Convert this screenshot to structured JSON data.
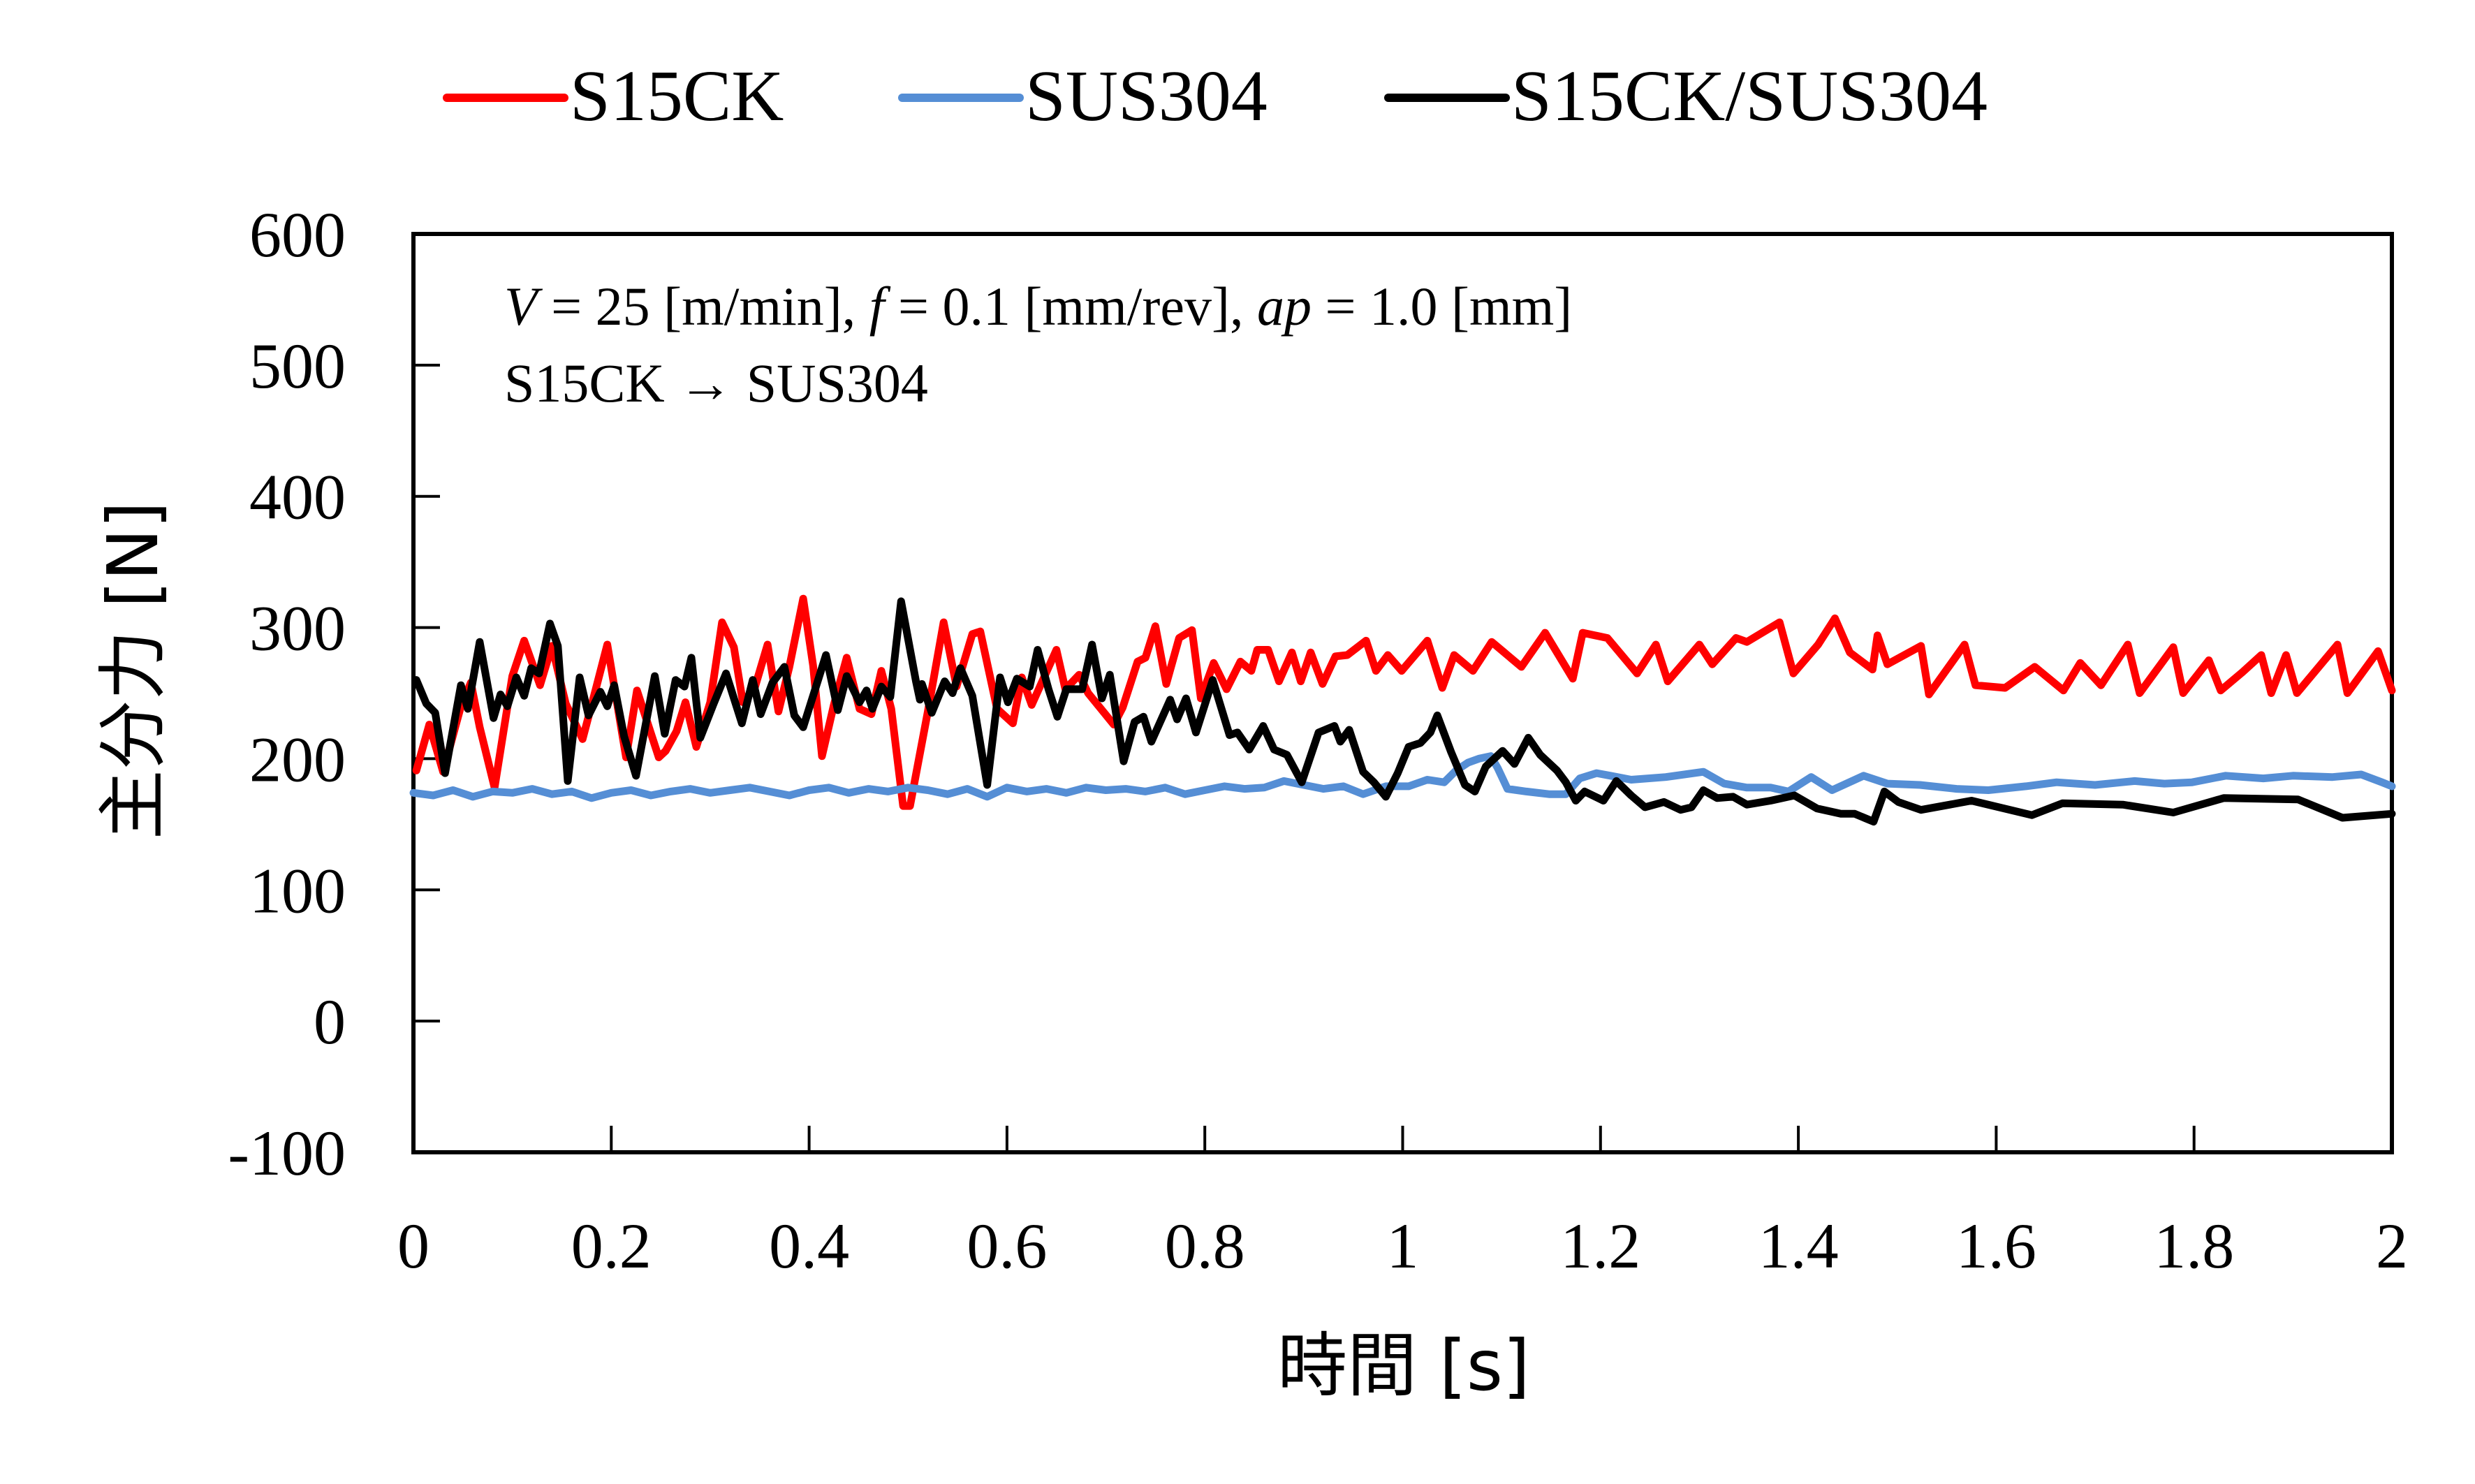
{
  "chart_data": {
    "type": "line",
    "title": "",
    "xlabel": "時間 [s]",
    "ylabel": "主分力 [N]",
    "xlim": [
      0,
      2
    ],
    "ylim": [
      -100,
      600
    ],
    "xticks": [
      0,
      0.2,
      0.4,
      0.6,
      0.8,
      1,
      1.2,
      1.4,
      1.6,
      1.8,
      2
    ],
    "xtick_labels": [
      "0",
      "0.2",
      "0.4",
      "0.6",
      "0.8",
      "1",
      "1.2",
      "1.4",
      "1.6",
      "1.8",
      "2"
    ],
    "yticks": [
      -100,
      0,
      100,
      200,
      300,
      400,
      500,
      600
    ],
    "ytick_labels": [
      "-100",
      "0",
      "100",
      "200",
      "300",
      "400",
      "500",
      "600"
    ],
    "grid": false,
    "legend_position": "top-center",
    "annotations": [
      {
        "parts": [
          {
            "text": "V",
            "italic": true
          },
          {
            "text": " = 25 [m/min], ",
            "italic": false
          },
          {
            "text": "f",
            "italic": true
          },
          {
            "text": " = 0.1 [mm/rev], ",
            "italic": false
          },
          {
            "text": "ap",
            "italic": true
          },
          {
            "text": " = 1.0 [mm]",
            "italic": false
          }
        ]
      },
      {
        "parts": [
          {
            "text": "S15CK → SUS304",
            "italic": false
          }
        ]
      }
    ],
    "series": [
      {
        "name": "S15CK",
        "color": "#FF0000",
        "t": [
          0.003,
          0.016,
          0.03,
          0.048,
          0.058,
          0.067,
          0.082,
          0.1,
          0.112,
          0.128,
          0.14,
          0.154,
          0.171,
          0.184,
          0.196,
          0.215,
          0.226,
          0.248,
          0.255,
          0.266,
          0.275,
          0.286,
          0.3,
          0.312,
          0.324,
          0.333,
          0.345,
          0.358,
          0.369,
          0.38,
          0.394,
          0.404,
          0.413,
          0.425,
          0.438,
          0.451,
          0.463,
          0.473,
          0.483,
          0.495,
          0.502,
          0.52,
          0.536,
          0.549,
          0.565,
          0.573,
          0.59,
          0.606,
          0.615,
          0.625,
          0.65,
          0.659,
          0.673,
          0.682,
          0.708,
          0.717,
          0.732,
          0.74,
          0.75,
          0.761,
          0.774,
          0.787,
          0.796,
          0.809,
          0.822,
          0.836,
          0.847,
          0.853,
          0.864,
          0.875,
          0.888,
          0.897,
          0.907,
          0.919,
          0.932,
          0.944,
          0.963,
          0.973,
          0.985,
          0.999,
          1.025,
          1.04,
          1.052,
          1.071,
          1.09,
          1.12,
          1.144,
          1.172,
          1.182,
          1.207,
          1.237,
          1.256,
          1.268,
          1.3,
          1.313,
          1.337,
          1.348,
          1.381,
          1.395,
          1.42,
          1.437,
          1.452,
          1.475,
          1.48,
          1.49,
          1.524,
          1.532,
          1.568,
          1.579,
          1.609,
          1.639,
          1.668,
          1.685,
          1.706,
          1.733,
          1.745,
          1.779,
          1.789,
          1.815,
          1.827,
          1.849,
          1.868,
          1.878,
          1.893,
          1.904,
          1.945,
          1.955,
          1.986,
          2.0
        ],
        "values": [
          191,
          226,
          190,
          240,
          258,
          224,
          178,
          263,
          290,
          256,
          286,
          242,
          215,
          252,
          287,
          201,
          252,
          201,
          206,
          221,
          243,
          209,
          243,
          304,
          285,
          243,
          254,
          287,
          236,
          270,
          322,
          271,
          202,
          241,
          277,
          238,
          234,
          267,
          238,
          164,
          164,
          236,
          304,
          255,
          295,
          297,
          238,
          227,
          262,
          241,
          283,
          253,
          264,
          250,
          226,
          239,
          274,
          277,
          301,
          257,
          292,
          298,
          246,
          273,
          253,
          274,
          267,
          283,
          283,
          259,
          281,
          259,
          281,
          257,
          278,
          279,
          290,
          267,
          279,
          267,
          290,
          254,
          279,
          267,
          289,
          270,
          296,
          261,
          296,
          292,
          265,
          287,
          259,
          287,
          272,
          292,
          289,
          304,
          265,
          287,
          307,
          281,
          268,
          294,
          272,
          286,
          249,
          287,
          256,
          254,
          270,
          252,
          273,
          256,
          287,
          250,
          285,
          250,
          275,
          252,
          266,
          279,
          250,
          279,
          250,
          287,
          250,
          282,
          252
        ]
      },
      {
        "name": "SUS304",
        "color": "#558ED5",
        "t": [
          0.0,
          0.02,
          0.04,
          0.06,
          0.08,
          0.1,
          0.12,
          0.14,
          0.16,
          0.18,
          0.2,
          0.22,
          0.24,
          0.26,
          0.28,
          0.3,
          0.32,
          0.34,
          0.36,
          0.38,
          0.4,
          0.42,
          0.44,
          0.46,
          0.48,
          0.5,
          0.52,
          0.54,
          0.56,
          0.58,
          0.6,
          0.62,
          0.64,
          0.66,
          0.68,
          0.7,
          0.72,
          0.74,
          0.76,
          0.78,
          0.8,
          0.82,
          0.84,
          0.86,
          0.88,
          0.9,
          0.92,
          0.94,
          0.96,
          0.983,
          1.006,
          1.025,
          1.042,
          1.054,
          1.066,
          1.077,
          1.089,
          1.096,
          1.106,
          1.125,
          1.148,
          1.165,
          1.179,
          1.196,
          1.21,
          1.231,
          1.266,
          1.304,
          1.325,
          1.348,
          1.372,
          1.39,
          1.413,
          1.434,
          1.466,
          1.49,
          1.523,
          1.56,
          1.592,
          1.63,
          1.661,
          1.7,
          1.74,
          1.77,
          1.798,
          1.832,
          1.87,
          1.9,
          1.94,
          1.969,
          1.99,
          2.0
        ],
        "values": [
          174,
          172,
          176,
          171,
          175,
          174,
          177,
          173,
          175,
          170,
          174,
          176,
          172,
          175,
          177,
          174,
          176,
          178,
          175,
          172,
          176,
          178,
          174,
          177,
          175,
          178,
          176,
          173,
          177,
          171,
          178,
          175,
          177,
          174,
          178,
          176,
          177,
          175,
          178,
          173,
          176,
          179,
          177,
          178,
          183,
          180,
          177,
          179,
          173,
          179,
          179,
          184,
          182,
          191,
          197,
          200,
          202,
          193,
          177,
          175,
          173,
          173,
          185,
          189,
          187,
          184,
          186,
          190,
          181,
          178,
          178,
          175,
          186,
          176,
          187,
          181,
          180,
          177,
          176,
          179,
          182,
          180,
          183,
          181,
          182,
          187,
          185,
          187,
          186,
          188,
          182,
          179
        ]
      },
      {
        "name": "S15CK/SUS304",
        "color": "#000000",
        "t": [
          0.003,
          0.013,
          0.022,
          0.032,
          0.048,
          0.055,
          0.067,
          0.081,
          0.088,
          0.095,
          0.104,
          0.112,
          0.119,
          0.127,
          0.138,
          0.146,
          0.156,
          0.168,
          0.177,
          0.189,
          0.196,
          0.203,
          0.213,
          0.225,
          0.244,
          0.254,
          0.265,
          0.274,
          0.281,
          0.29,
          0.303,
          0.316,
          0.332,
          0.343,
          0.351,
          0.363,
          0.375,
          0.385,
          0.394,
          0.417,
          0.429,
          0.438,
          0.451,
          0.458,
          0.464,
          0.473,
          0.482,
          0.493,
          0.508,
          0.512,
          0.514,
          0.524,
          0.537,
          0.545,
          0.553,
          0.565,
          0.58,
          0.593,
          0.601,
          0.61,
          0.623,
          0.631,
          0.642,
          0.651,
          0.66,
          0.676,
          0.686,
          0.696,
          0.704,
          0.718,
          0.729,
          0.738,
          0.746,
          0.765,
          0.772,
          0.781,
          0.791,
          0.808,
          0.825,
          0.833,
          0.845,
          0.859,
          0.87,
          0.883,
          0.898,
          0.915,
          0.931,
          0.937,
          0.946,
          0.96,
          0.971,
          0.983,
          0.995,
          1.006,
          1.018,
          1.028,
          1.035,
          1.049,
          1.063,
          1.073,
          1.084,
          1.101,
          1.113,
          1.127,
          1.139,
          1.156,
          1.165,
          1.175,
          1.184,
          1.203,
          1.216,
          1.231,
          1.245,
          1.264,
          1.281,
          1.292,
          1.304,
          1.318,
          1.334,
          1.348,
          1.372,
          1.396,
          1.419,
          1.443,
          1.457,
          1.476,
          1.487,
          1.501,
          1.524,
          1.575,
          1.636,
          1.667,
          1.728,
          1.779,
          1.83,
          1.905,
          1.95,
          2.0
        ],
        "values": [
          260,
          242,
          235,
          189,
          256,
          238,
          289,
          231,
          249,
          240,
          262,
          248,
          269,
          265,
          303,
          286,
          183,
          262,
          233,
          251,
          240,
          256,
          217,
          187,
          263,
          219,
          260,
          255,
          277,
          216,
          241,
          265,
          227,
          260,
          234,
          258,
          270,
          233,
          224,
          279,
          237,
          263,
          243,
          252,
          238,
          255,
          247,
          320,
          259,
          245,
          257,
          235,
          259,
          250,
          269,
          248,
          180,
          262,
          243,
          261,
          255,
          283,
          253,
          232,
          253,
          253,
          287,
          246,
          264,
          198,
          228,
          232,
          213,
          245,
          230,
          246,
          220,
          260,
          218,
          220,
          207,
          225,
          207,
          203,
          182,
          220,
          225,
          213,
          222,
          190,
          182,
          171,
          189,
          209,
          212,
          220,
          233,
          205,
          180,
          175,
          194,
          206,
          196,
          216,
          203,
          191,
          182,
          168,
          175,
          168,
          183,
          172,
          163,
          167,
          161,
          163,
          176,
          170,
          171,
          165,
          168,
          172,
          162,
          158,
          158,
          152,
          175,
          167,
          161,
          168,
          157,
          166,
          165,
          159,
          170,
          169,
          155,
          158
        ]
      }
    ]
  }
}
